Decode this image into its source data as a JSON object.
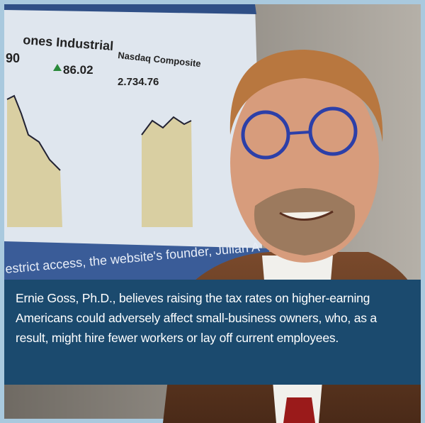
{
  "photo": {
    "screen_texts": {
      "index1": "ones Industrial",
      "value1": "90",
      "change1": "86.02",
      "index2": "Nasdaq Composite",
      "value2": "2.734.76"
    },
    "ticker": "estrict access, the website's founder, Julian A"
  },
  "caption": "Ernie Goss, Ph.D., believes raising the tax rates on higher-earning Americans could adversely affect small-business owners, who, as a result, might hire fewer workers or lay off current employees."
}
